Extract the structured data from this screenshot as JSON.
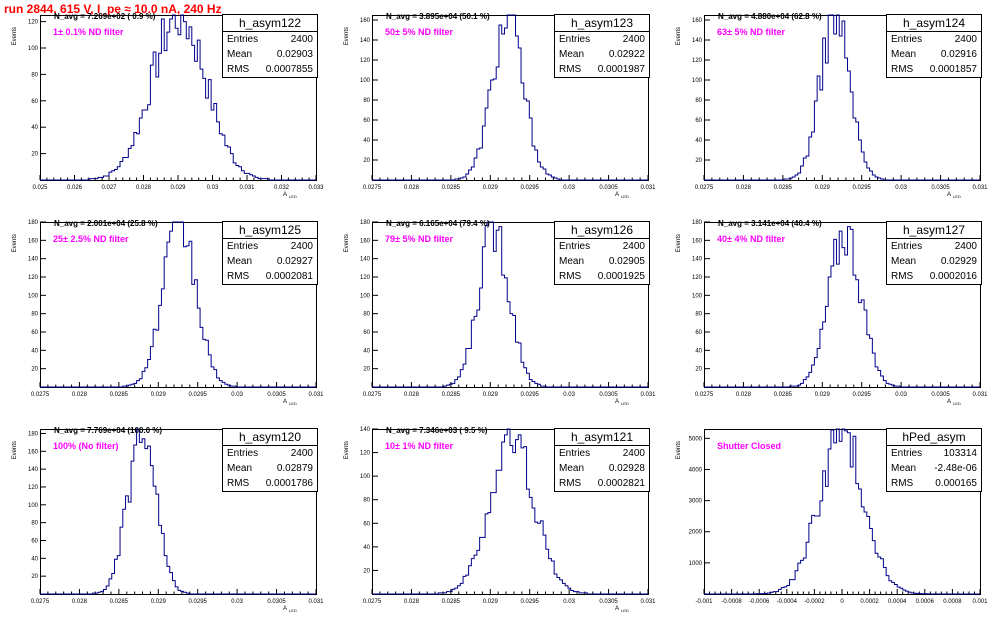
{
  "title": "run 2844,   615 V, I_pe ≈ 10.0 nA, 240 Hz",
  "colors": {
    "title": "#ff0000",
    "hist": "#00008b",
    "filter_label": "#ff00ff"
  },
  "chart_data": [
    {
      "type": "histogram",
      "name": "h_asym122",
      "ylabel": "Events",
      "xlabel": "A",
      "xlabel_sub": "LED",
      "annotation": "N_avg = 7.269e+02 ( 0.9 %)",
      "filter_label": "1± 0.1% ND filter",
      "stats": {
        "Entries": "2400",
        "Mean": "0.02903",
        "RMS": "0.0007855"
      },
      "mean": 0.02903,
      "rms": 0.0007855,
      "entries": 2400,
      "peak": 125,
      "ylim": [
        0,
        125
      ],
      "yticks": [
        "20",
        "40",
        "60",
        "80",
        "100",
        "120"
      ],
      "xticks": [
        "0.025",
        "0.026",
        "0.027",
        "0.028",
        "0.029",
        "0.03",
        "0.031",
        "0.032",
        "0.033"
      ],
      "xlim": [
        0.025,
        0.033
      ]
    },
    {
      "type": "histogram",
      "name": "h_asym123",
      "ylabel": "Events",
      "xlabel": "A",
      "xlabel_sub": "LED",
      "annotation": "N_avg = 3.895e+04 (50.1 %)",
      "filter_label": "50± 5% ND filter",
      "stats": {
        "Entries": "2400",
        "Mean": "0.02922",
        "RMS": "0.0001987"
      },
      "mean": 0.02922,
      "rms": 0.0001987,
      "entries": 2400,
      "peak": 160,
      "ylim": [
        0,
        165
      ],
      "yticks": [
        "20",
        "40",
        "60",
        "80",
        "100",
        "120",
        "140",
        "160"
      ],
      "xticks": [
        "0.0275",
        "0.028",
        "0.0285",
        "0.029",
        "0.0295",
        "0.03",
        "0.0305",
        "0.031"
      ],
      "xlim": [
        0.0275,
        0.031
      ]
    },
    {
      "type": "histogram",
      "name": "h_asym124",
      "ylabel": "Events",
      "xlabel": "A",
      "xlabel_sub": "LED",
      "annotation": "N_avg = 4.880e+04 (62.8 %)",
      "filter_label": "63± 5% ND filter",
      "stats": {
        "Entries": "2400",
        "Mean": "0.02916",
        "RMS": "0.0001857"
      },
      "mean": 0.02916,
      "rms": 0.0001857,
      "entries": 2400,
      "peak": 165,
      "ylim": [
        0,
        165
      ],
      "yticks": [
        "20",
        "40",
        "60",
        "80",
        "100",
        "120",
        "140",
        "160"
      ],
      "xticks": [
        "0.0275",
        "0.028",
        "0.0285",
        "0.029",
        "0.0295",
        "0.03",
        "0.0305",
        "0.031"
      ],
      "xlim": [
        0.0275,
        0.031
      ]
    },
    {
      "type": "histogram",
      "name": "h_asym125",
      "ylabel": "Events",
      "xlabel": "A",
      "xlabel_sub": "LED",
      "annotation": "N_avg = 2.001e+04 (25.8 %)",
      "filter_label": "25± 2.5% ND filter",
      "stats": {
        "Entries": "2400",
        "Mean": "0.02927",
        "RMS": "0.0002081"
      },
      "mean": 0.02927,
      "rms": 0.0002081,
      "entries": 2400,
      "peak": 178,
      "ylim": [
        0,
        180
      ],
      "yticks": [
        "20",
        "40",
        "60",
        "80",
        "100",
        "120",
        "140",
        "160",
        "180"
      ],
      "xticks": [
        "0.0275",
        "0.028",
        "0.0285",
        "0.029",
        "0.0295",
        "0.03",
        "0.0305",
        "0.031"
      ],
      "xlim": [
        0.0275,
        0.031
      ]
    },
    {
      "type": "histogram",
      "name": "h_asym126",
      "ylabel": "Events",
      "xlabel": "A",
      "xlabel_sub": "LED",
      "annotation": "N_avg = 6.165e+04 (79.4 %)",
      "filter_label": "79± 5% ND filter",
      "stats": {
        "Entries": "2400",
        "Mean": "0.02905",
        "RMS": "0.0001925"
      },
      "mean": 0.02905,
      "rms": 0.0001925,
      "entries": 2400,
      "peak": 175,
      "ylim": [
        0,
        180
      ],
      "yticks": [
        "20",
        "40",
        "60",
        "80",
        "100",
        "120",
        "140",
        "160",
        "180"
      ],
      "xticks": [
        "0.0275",
        "0.028",
        "0.0285",
        "0.029",
        "0.0295",
        "0.03",
        "0.0305",
        "0.031"
      ],
      "xlim": [
        0.0275,
        0.031
      ]
    },
    {
      "type": "histogram",
      "name": "h_asym127",
      "ylabel": "Events",
      "xlabel": "A",
      "xlabel_sub": "LED",
      "annotation": "N_avg = 3.141e+04 (40.4 %)",
      "filter_label": "40± 4% ND filter",
      "stats": {
        "Entries": "2400",
        "Mean": "0.02929",
        "RMS": "0.0002016"
      },
      "mean": 0.02929,
      "rms": 0.0002016,
      "entries": 2400,
      "peak": 170,
      "ylim": [
        0,
        180
      ],
      "yticks": [
        "20",
        "40",
        "60",
        "80",
        "100",
        "120",
        "140",
        "160",
        "180"
      ],
      "xticks": [
        "0.0275",
        "0.028",
        "0.0285",
        "0.029",
        "0.0295",
        "0.03",
        "0.0305",
        "0.031"
      ],
      "xlim": [
        0.0275,
        0.031
      ]
    },
    {
      "type": "histogram",
      "name": "h_asym120",
      "ylabel": "Events",
      "xlabel": "A",
      "xlabel_sub": "LED",
      "annotation": "N_avg = 7.769e+04 (100.0 %)",
      "filter_label": "100% (No filter)",
      "stats": {
        "Entries": "2400",
        "Mean": "0.02879",
        "RMS": "0.0001786"
      },
      "mean": 0.02879,
      "rms": 0.0001786,
      "entries": 2400,
      "peak": 180,
      "ylim": [
        0,
        185
      ],
      "yticks": [
        "20",
        "40",
        "60",
        "80",
        "100",
        "120",
        "140",
        "160",
        "180"
      ],
      "xticks": [
        "0.0275",
        "0.028",
        "0.0285",
        "0.029",
        "0.0295",
        "0.03",
        "0.0305",
        "0.031"
      ],
      "xlim": [
        0.0275,
        0.031
      ]
    },
    {
      "type": "histogram",
      "name": "h_asym121",
      "ylabel": "Events",
      "xlabel": "A",
      "xlabel_sub": "LED",
      "annotation": "N_avg = 7.346e+03 ( 9.5 %)",
      "filter_label": "10± 1% ND filter",
      "stats": {
        "Entries": "2400",
        "Mean": "0.02928",
        "RMS": "0.0002821"
      },
      "mean": 0.02928,
      "rms": 0.0002821,
      "entries": 2400,
      "peak": 130,
      "ylim": [
        0,
        140
      ],
      "yticks": [
        "20",
        "40",
        "60",
        "80",
        "100",
        "120",
        "140"
      ],
      "xticks": [
        "0.0275",
        "0.028",
        "0.0285",
        "0.029",
        "0.0295",
        "0.03",
        "0.0305",
        "0.031"
      ],
      "xlim": [
        0.0275,
        0.031
      ]
    },
    {
      "type": "histogram",
      "name": "hPed_asym",
      "ylabel": "Events",
      "xlabel": "",
      "xlabel_sub": "",
      "annotation": "",
      "filter_label": "Shutter Closed",
      "stats": {
        "Entries": "103314",
        "Mean": "-2.48e-06",
        "RMS": "0.000165"
      },
      "mean": -2.48e-06,
      "rms": 0.000165,
      "entries": 103314,
      "peak": 5050,
      "ylim": [
        0,
        5300
      ],
      "yticks": [
        "1000",
        "2000",
        "3000",
        "4000",
        "5000"
      ],
      "xticks": [
        "-0.001",
        "-0.0008",
        "-0.0006",
        "-0.0004",
        "-0.0002",
        "0",
        "0.0002",
        "0.0004",
        "0.0006",
        "0.0008",
        "0.001"
      ],
      "xlim": [
        -0.001,
        0.001
      ]
    }
  ]
}
